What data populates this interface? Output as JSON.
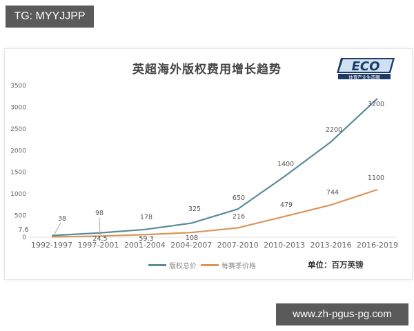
{
  "overlay": {
    "tg_label": "TG: MYYJJPP",
    "watermark": "www.zh-pgus-pg.com"
  },
  "logo": {
    "text": "ECO",
    "subtitle": "体育产业生态圈"
  },
  "legend": {
    "series_0": "版权总价",
    "series_1": "每赛季价格"
  },
  "unit_label": "单位：百万英镑",
  "colors": {
    "series_0": "#5b8a99",
    "series_1": "#d9955a",
    "axis_text": "#666666"
  },
  "chart_data": {
    "type": "line",
    "title": "英超海外版权费用增长趋势",
    "xlabel": "",
    "ylabel": "",
    "ylim": [
      0,
      3500
    ],
    "yticks": [
      0,
      500,
      1000,
      1500,
      2000,
      2500,
      3000,
      3500
    ],
    "grid": false,
    "legend_position": "bottom",
    "categories": [
      "1992-1997",
      "1997-2001",
      "2001-2004",
      "2004-2007",
      "2007-2010",
      "2010-2013",
      "2013-2016",
      "2016-2019"
    ],
    "series": [
      {
        "name": "版权总价",
        "values": [
          38,
          98,
          178,
          325,
          650,
          1400,
          2200,
          3200
        ]
      },
      {
        "name": "每赛季价格",
        "values": [
          7.6,
          24.5,
          59.3,
          108,
          216,
          479,
          744,
          1100
        ]
      }
    ],
    "unit": "百万英镑"
  }
}
